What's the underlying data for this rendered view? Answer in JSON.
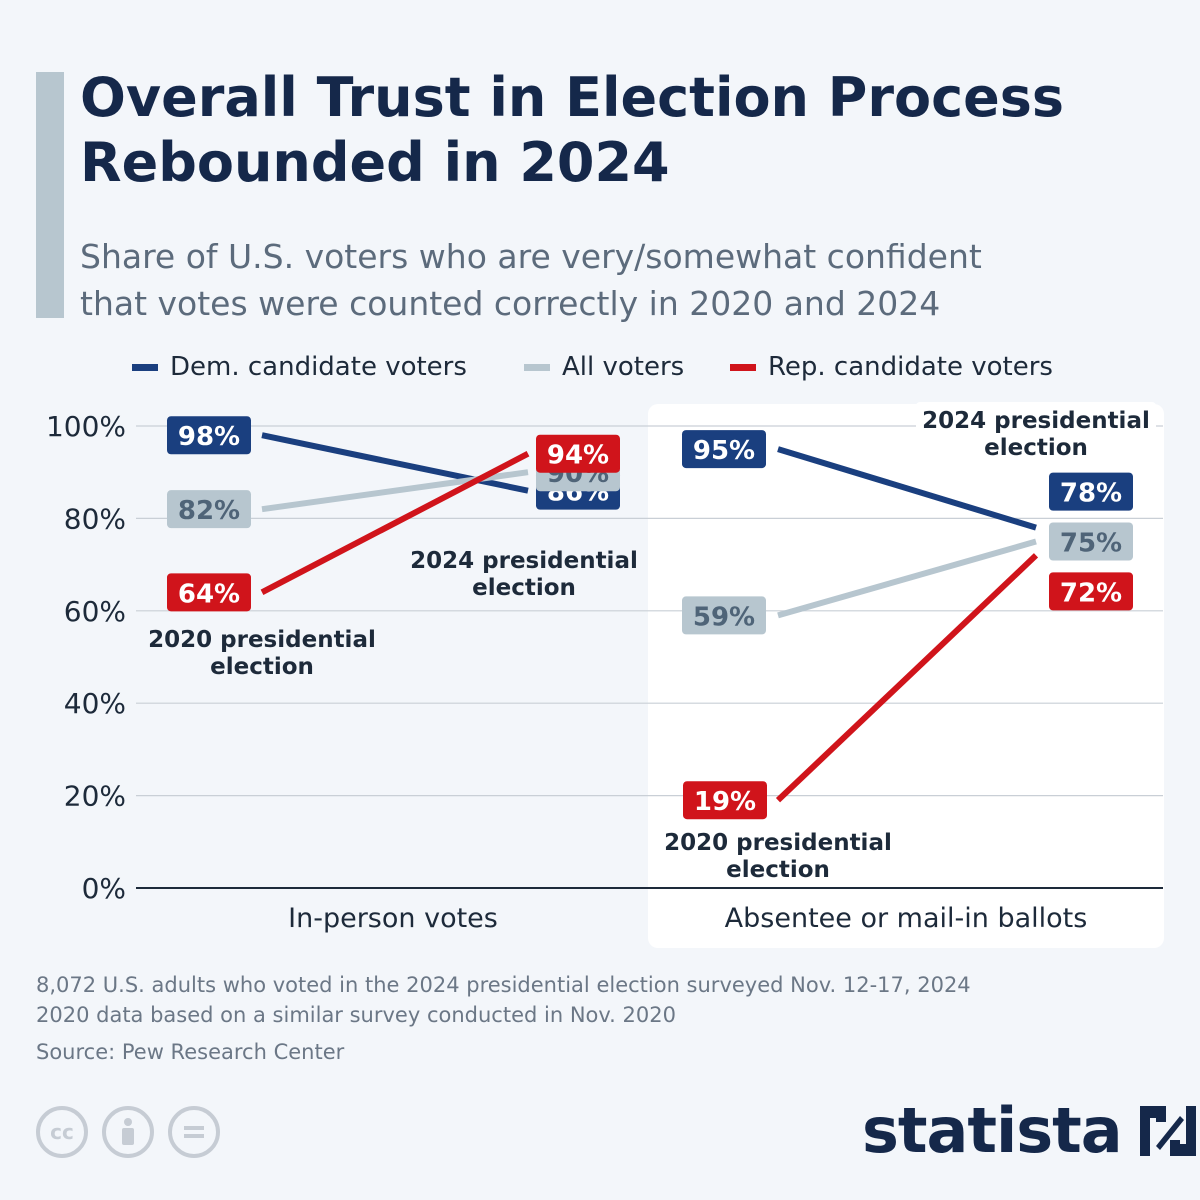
{
  "header": {
    "title_lines": [
      "Overall Trust in Election Process",
      "Rebounded in 2024"
    ],
    "subtitle_lines": [
      "Share of U.S. voters who are very/somewhat confident",
      "that votes were counted correctly in 2020 and 2024"
    ]
  },
  "colors": {
    "dem": "#1a3f7f",
    "all": "#b7c6cf",
    "rep": "#d0141b",
    "title": "#15284a",
    "panel": "#ffffff",
    "background": "#f3f6fa"
  },
  "legend": {
    "position": "top",
    "items": [
      {
        "label": "Dem. candidate voters",
        "color": "#1a3f7f"
      },
      {
        "label": "All voters",
        "color": "#b7c6cf"
      },
      {
        "label": "Rep. candidate voters",
        "color": "#d0141b"
      }
    ]
  },
  "chart_data": {
    "type": "line",
    "title": "Overall Trust in Election Process Rebounded in 2024",
    "ylabel": "",
    "ylim": [
      0,
      100
    ],
    "yticks": [
      "0%",
      "20%",
      "40%",
      "60%",
      "80%",
      "100%"
    ],
    "grid": true,
    "panels": [
      {
        "label": "In-person votes",
        "highlighted": false,
        "x": [
          "2020 presidential election",
          "2024 presidential election"
        ],
        "series": [
          {
            "name": "Dem. candidate voters",
            "values": [
              98,
              86
            ],
            "labels": [
              "98%",
              "86%"
            ]
          },
          {
            "name": "All voters",
            "values": [
              82,
              90
            ],
            "labels": [
              "82%",
              "90%"
            ]
          },
          {
            "name": "Rep. candidate voters",
            "values": [
              64,
              94
            ],
            "labels": [
              "64%",
              "94%"
            ]
          }
        ]
      },
      {
        "label": "Absentee or mail-in ballots",
        "highlighted": true,
        "x": [
          "2020 presidential election",
          "2024 presidential election"
        ],
        "series": [
          {
            "name": "Dem. candidate voters",
            "values": [
              95,
              78
            ],
            "labels": [
              "95%",
              "78%"
            ]
          },
          {
            "name": "All voters",
            "values": [
              59,
              75
            ],
            "labels": [
              "59%",
              "75%"
            ]
          },
          {
            "name": "Rep. candidate voters",
            "values": [
              19,
              72
            ],
            "labels": [
              "19%",
              "72%"
            ]
          }
        ]
      }
    ],
    "annotations": [
      {
        "panel": 0,
        "lines": [
          "2020 presidential",
          "election"
        ]
      },
      {
        "panel": 0,
        "lines": [
          "2024 presidential",
          "election"
        ]
      },
      {
        "panel": 1,
        "lines": [
          "2020 presidential",
          "election"
        ]
      },
      {
        "panel": 1,
        "lines": [
          "2024 presidential",
          "election"
        ]
      }
    ]
  },
  "footer": {
    "note_lines": [
      "8,072 U.S. adults who voted in the 2024 presidential election surveyed Nov. 12-17, 2024",
      "2020 data based on a similar survey conducted in Nov. 2020"
    ],
    "source": "Source: Pew Research Center",
    "brand": "statista"
  }
}
